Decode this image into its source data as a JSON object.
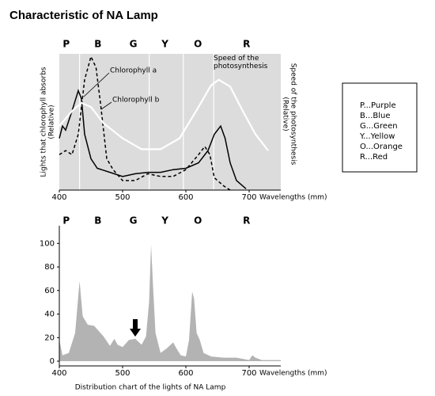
{
  "title": "Characteristic of NA Lamp",
  "chart_data": [
    {
      "type": "line",
      "bands": [
        "P",
        "B",
        "G",
        "Y",
        "O",
        "R"
      ],
      "band_x": [
        411,
        461,
        517,
        567,
        619,
        696
      ],
      "band_edges": [
        432,
        542,
        596,
        644
      ],
      "band_legend": [
        "P...Purple",
        "B...Blue",
        "G...Green",
        "Y...Yellow",
        "O...Orange",
        "R...Red"
      ],
      "background": "#dcdcdc",
      "xlim": [
        400,
        750
      ],
      "ylim": [
        0,
        100
      ],
      "xticks": [
        400,
        500,
        600,
        700
      ],
      "xlabel": "Wavelengths (mm)",
      "ylabel": [
        "Lights that chlorophyll absorbs",
        "(Relative)"
      ],
      "y2label": [
        "Speed of the photosynthesis",
        "(Relative)"
      ],
      "series": [
        {
          "name": "Chlorophyll a",
          "color": "#000000",
          "style": "solid",
          "x": [
            400,
            405,
            410,
            420,
            430,
            435,
            440,
            450,
            460,
            480,
            500,
            520,
            540,
            560,
            580,
            600,
            620,
            635,
            645,
            655,
            662,
            670,
            680,
            695
          ],
          "values": [
            38,
            47,
            44,
            58,
            73,
            67,
            41,
            23,
            16,
            13,
            10,
            12,
            13,
            13,
            15,
            16,
            20,
            29,
            41,
            47,
            38,
            20,
            7,
            1
          ]
        },
        {
          "name": "Chlorophyll b",
          "color": "#000000",
          "style": "dashed",
          "x": [
            400,
            410,
            420,
            430,
            440,
            450,
            458,
            465,
            475,
            485,
            500,
            520,
            540,
            560,
            580,
            600,
            620,
            630,
            638,
            645,
            660,
            670
          ],
          "values": [
            26,
            29,
            26,
            41,
            81,
            98,
            90,
            64,
            23,
            15,
            7,
            7,
            12,
            10,
            10,
            15,
            26,
            32,
            26,
            9,
            3,
            0
          ]
        },
        {
          "name": "Speed of the photosynthesis",
          "color": "#ffffff",
          "style": "solid",
          "x": [
            400,
            420,
            435,
            450,
            470,
            500,
            530,
            560,
            590,
            620,
            640,
            652,
            670,
            690,
            710,
            730
          ],
          "values": [
            47,
            58,
            64,
            61,
            49,
            38,
            30,
            30,
            38,
            61,
            77,
            81,
            76,
            58,
            41,
            29
          ]
        }
      ]
    },
    {
      "type": "area",
      "bands": [
        "P",
        "B",
        "G",
        "Y",
        "O",
        "R"
      ],
      "band_x": [
        411,
        461,
        517,
        567,
        619,
        696
      ],
      "background": "#ffffff",
      "xlim": [
        400,
        750
      ],
      "ylim": [
        -4,
        115
      ],
      "xticks": [
        400,
        500,
        600,
        700
      ],
      "yticks": [
        0,
        20,
        40,
        60,
        80,
        100
      ],
      "xlabel": "Wavelengths (mm)",
      "caption": "Distribution chart of the lights of NA Lamp",
      "series": [
        {
          "color": "#b3b3b3",
          "x": [
            400,
            405,
            415,
            425,
            432,
            437,
            445,
            455,
            470,
            480,
            487,
            492,
            500,
            510,
            520,
            530,
            537,
            542,
            545,
            548,
            552,
            560,
            570,
            580,
            585,
            592,
            600,
            605,
            610,
            613,
            617,
            622,
            628,
            640,
            660,
            680,
            700,
            705,
            710,
            720,
            750
          ],
          "values": [
            18,
            5,
            7,
            24,
            68,
            38,
            31,
            30,
            21,
            13,
            19,
            14,
            12,
            18,
            19,
            14,
            21,
            51,
            99,
            65,
            24,
            7,
            11,
            16,
            11,
            5,
            4,
            18,
            59,
            53,
            24,
            18,
            7,
            4,
            3,
            3,
            1,
            5,
            3,
            1,
            1
          ]
        }
      ]
    }
  ]
}
